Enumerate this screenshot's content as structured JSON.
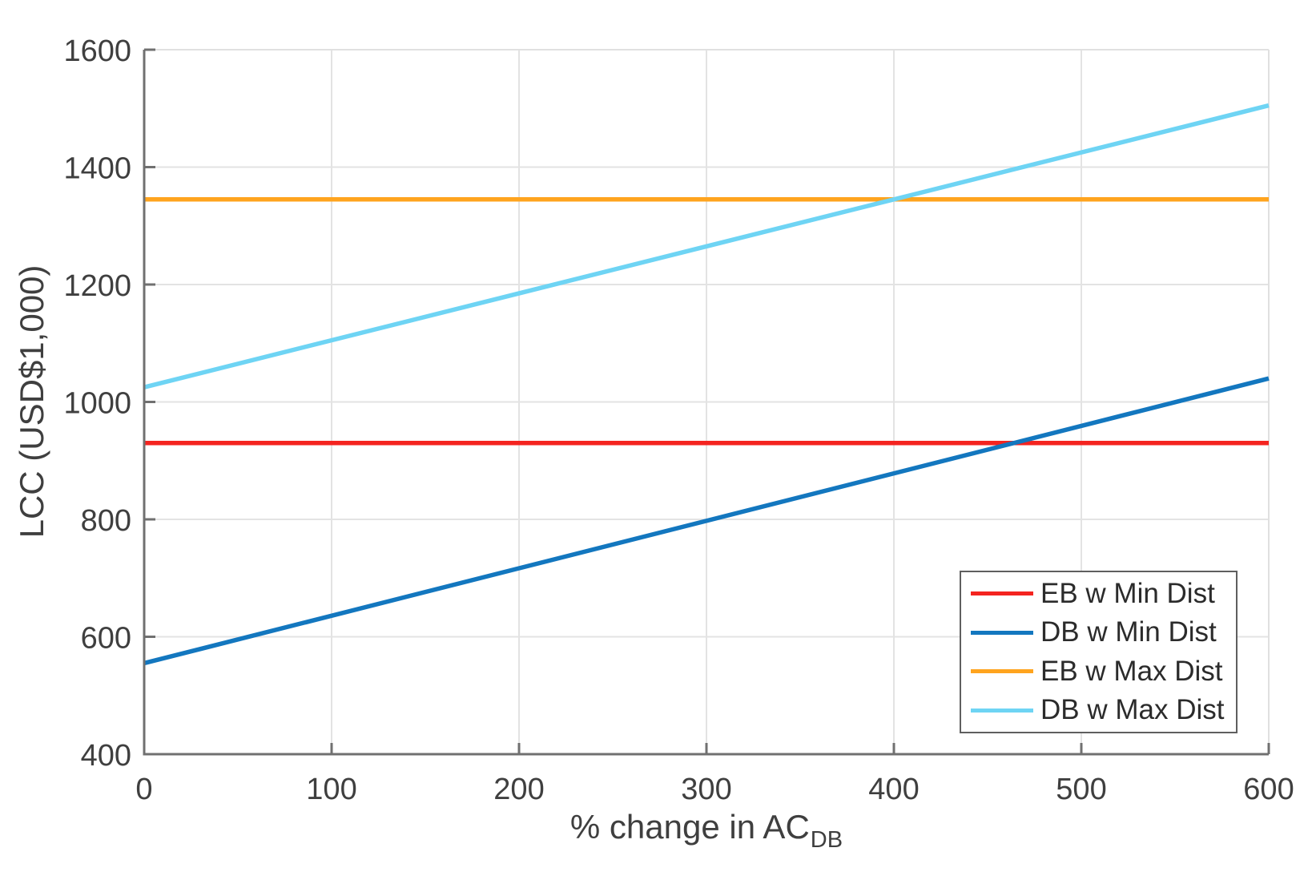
{
  "chart_data": {
    "type": "line",
    "title": "",
    "ylabel": "LCC (USD$1,000)",
    "xlabel_main": "% change in AC",
    "xlabel_sub": "DB",
    "xlim": [
      0,
      600
    ],
    "ylim": [
      400,
      1600
    ],
    "xticks": [
      0,
      100,
      200,
      300,
      400,
      500,
      600
    ],
    "yticks": [
      400,
      600,
      800,
      1000,
      1200,
      1400,
      1600
    ],
    "xtick_labels": [
      "0",
      "100",
      "200",
      "300",
      "400",
      "500",
      "600"
    ],
    "ytick_labels": [
      "400",
      "600",
      "800",
      "1000",
      "1200",
      "1400",
      "1600"
    ],
    "grid": true,
    "legend_position": "bottom-right",
    "series": [
      {
        "name": "EB w Min Dist",
        "color": "#f42420",
        "x": [
          0,
          600
        ],
        "y": [
          930,
          930
        ]
      },
      {
        "name": "DB w Min Dist",
        "color": "#1377bf",
        "x": [
          0,
          600
        ],
        "y": [
          555,
          1040
        ]
      },
      {
        "name": "EB w Max Dist",
        "color": "#ffa41e",
        "x": [
          0,
          600
        ],
        "y": [
          1345,
          1345
        ]
      },
      {
        "name": "DB w Max Dist",
        "color": "#6ed4f4",
        "x": [
          0,
          600
        ],
        "y": [
          1025,
          1505
        ]
      }
    ]
  },
  "colors": {
    "grid": "#e3e3e3",
    "box": "#e0e0e0",
    "axis": "#707070",
    "tick_text": "#3f3f3f",
    "legend_border": "#5f5f5f",
    "background": "#ffffff"
  }
}
